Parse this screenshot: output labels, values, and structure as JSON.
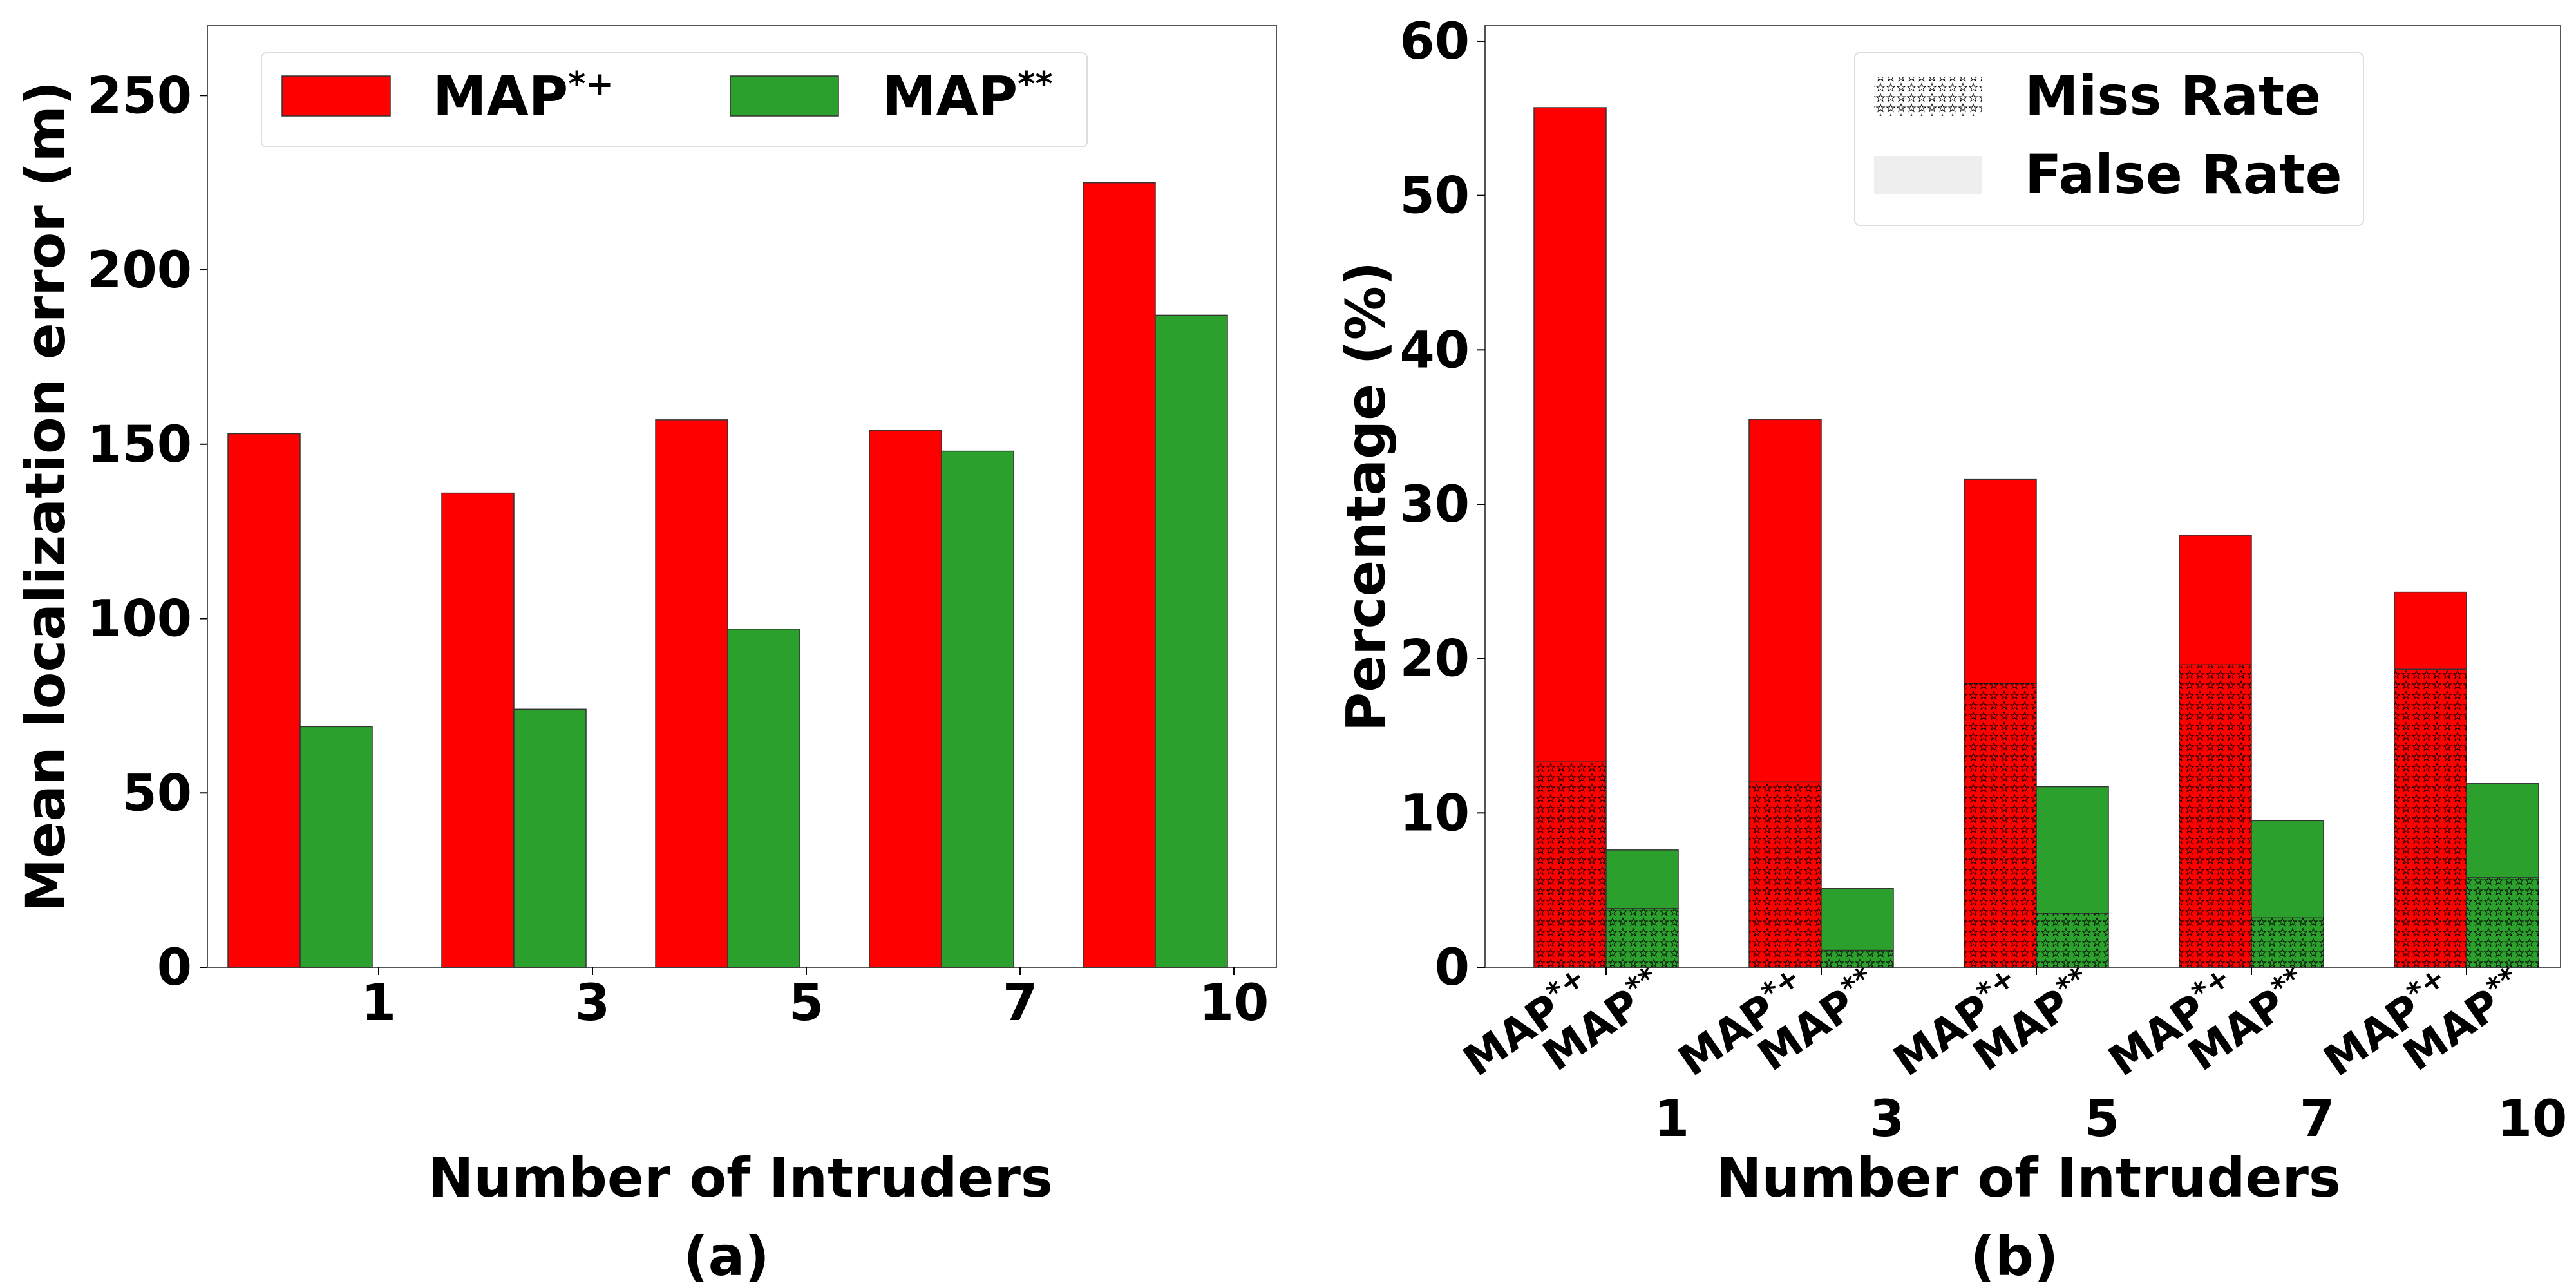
{
  "chart_data": [
    {
      "type": "bar",
      "xlabel": "Number of Intruders",
      "ylabel": "Mean localization error (m)",
      "caption": "(a)",
      "categories": [
        "1",
        "3",
        "5",
        "7",
        "10"
      ],
      "ylim": [
        0,
        270
      ],
      "yticks": [
        "0",
        "50",
        "100",
        "150",
        "200",
        "250"
      ],
      "series": [
        {
          "name": "MAP*+",
          "name_base": "MAP",
          "name_sup": "*+",
          "color": "#ff0000",
          "values": [
            153,
            136,
            157,
            154,
            225
          ]
        },
        {
          "name": "MAP**",
          "name_base": "MAP",
          "name_sup": "**",
          "color": "#2ca02c",
          "values": [
            69,
            74,
            97,
            148,
            187
          ]
        }
      ],
      "legend": "top",
      "grid": false
    },
    {
      "type": "bar",
      "stacked": true,
      "xlabel": "Number of Intruders",
      "ylabel": "Percentage (%)",
      "caption": "(b)",
      "categories": [
        "1",
        "3",
        "5",
        "7",
        "10"
      ],
      "bar_labels": [
        {
          "base": "MAP",
          "sup": "*+"
        },
        {
          "base": "MAP",
          "sup": "**"
        }
      ],
      "ylim": [
        0,
        61
      ],
      "yticks": [
        "0",
        "10",
        "20",
        "30",
        "40",
        "50",
        "60"
      ],
      "series": [
        {
          "name": "MAP*+",
          "color": "#ff0000",
          "miss_rate": [
            13.3,
            12.0,
            18.4,
            19.6,
            19.3
          ],
          "total": [
            55.7,
            35.5,
            31.6,
            28.0,
            24.3
          ]
        },
        {
          "name": "MAP**",
          "color": "#2ca02c",
          "miss_rate": [
            3.8,
            1.1,
            3.5,
            3.2,
            5.8
          ],
          "total": [
            7.6,
            5.1,
            11.7,
            9.5,
            11.9
          ]
        }
      ],
      "legend_entries": [
        "Miss Rate",
        "False Rate"
      ],
      "legend": "top-right",
      "grid": false
    }
  ]
}
